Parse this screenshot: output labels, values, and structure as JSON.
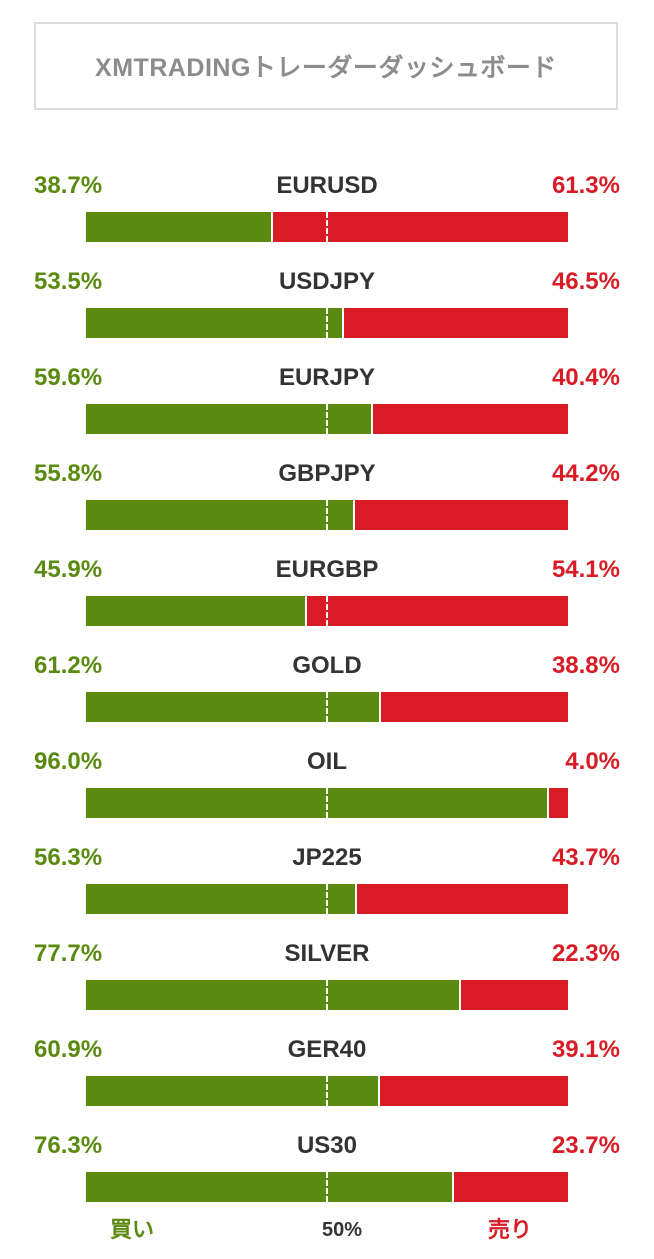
{
  "title": "XMTRADINGトレーダーダッシュボード",
  "colors": {
    "buy": "#5a8a0f",
    "sell": "#d81b24",
    "text": "#333333",
    "title": "#8c8c8c"
  },
  "instruments": [
    {
      "symbol": "EURUSD",
      "buy_label": "38.7%",
      "sell_label": "61.3%",
      "buy_fraction": 0.387
    },
    {
      "symbol": "USDJPY",
      "buy_label": "53.5%",
      "sell_label": "46.5%",
      "buy_fraction": 0.535
    },
    {
      "symbol": "EURJPY",
      "buy_label": "59.6%",
      "sell_label": "40.4%",
      "buy_fraction": 0.596
    },
    {
      "symbol": "GBPJPY",
      "buy_label": "55.8%",
      "sell_label": "44.2%",
      "buy_fraction": 0.558
    },
    {
      "symbol": "EURGBP",
      "buy_label": "45.9%",
      "sell_label": "54.1%",
      "buy_fraction": 0.459
    },
    {
      "symbol": "GOLD",
      "buy_label": "61.2%",
      "sell_label": "38.8%",
      "buy_fraction": 0.612
    },
    {
      "symbol": "OIL",
      "buy_label": "96.0%",
      "sell_label": "4.0%",
      "buy_fraction": 0.96
    },
    {
      "symbol": "JP225",
      "buy_label": "56.3%",
      "sell_label": "43.7%",
      "buy_fraction": 0.563
    },
    {
      "symbol": "SILVER",
      "buy_label": "77.7%",
      "sell_label": "22.3%",
      "buy_fraction": 0.777
    },
    {
      "symbol": "GER40",
      "buy_label": "60.9%",
      "sell_label": "39.1%",
      "buy_fraction": 0.609
    },
    {
      "symbol": "US30",
      "buy_label": "76.3%",
      "sell_label": "23.7%",
      "buy_fraction": 0.763
    }
  ],
  "footer": {
    "buy_label": "買い",
    "mid_label": "50%",
    "sell_label": "売り"
  }
}
